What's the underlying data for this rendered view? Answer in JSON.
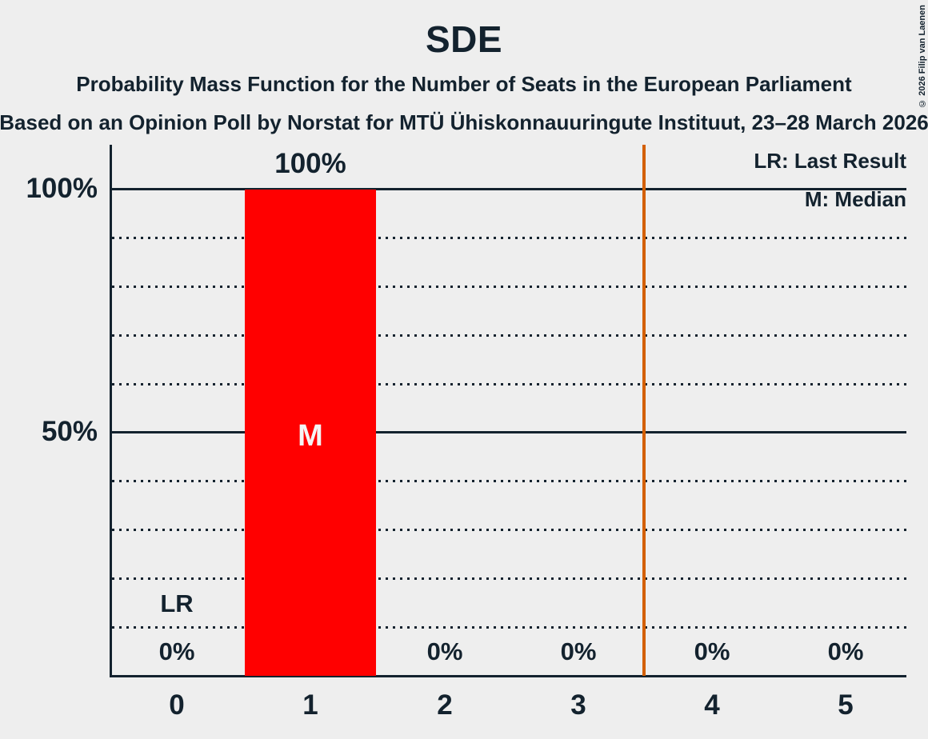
{
  "header": {
    "title": "SDE",
    "subtitle": "Probability Mass Function for the Number of Seats in the European Parliament",
    "source_line": "Based on an Opinion Poll by Norstat for MTÜ Ühiskonnauuringute Instituut, 23–28 March 2026",
    "copyright": "© 2026 Filip van Laenen"
  },
  "legend": {
    "last_result": "LR: Last Result",
    "median": "M: Median"
  },
  "y_axis": {
    "label_100": "100%",
    "label_50": "50%"
  },
  "annotations": {
    "last_result_label": "LR",
    "median_marker": "M"
  },
  "colors": {
    "background": "#EEEEEE",
    "text": "#13222E",
    "bar": "#FF0000",
    "majority_line": "#D35F00",
    "median_letter": "#F4F4F4"
  },
  "chart_data": {
    "type": "bar",
    "title": "SDE",
    "categories": [
      "0",
      "1",
      "2",
      "3",
      "4",
      "5"
    ],
    "values": [
      0,
      100,
      0,
      0,
      0,
      0
    ],
    "value_labels": [
      "0%",
      "100%",
      "0%",
      "0%",
      "0%",
      "0%"
    ],
    "ylim": [
      0,
      100
    ],
    "ytick_labels_shown": [
      "100%",
      "50%"
    ],
    "gridlines_pct": [
      10,
      20,
      30,
      40,
      60,
      70,
      80,
      90
    ],
    "solid_lines_pct": [
      50,
      100
    ],
    "median_at_seats": 1,
    "last_result_at_seats": 0,
    "vertical_threshold_line_x": 3.5,
    "grid": "dotted",
    "legend_position": "top-right"
  }
}
